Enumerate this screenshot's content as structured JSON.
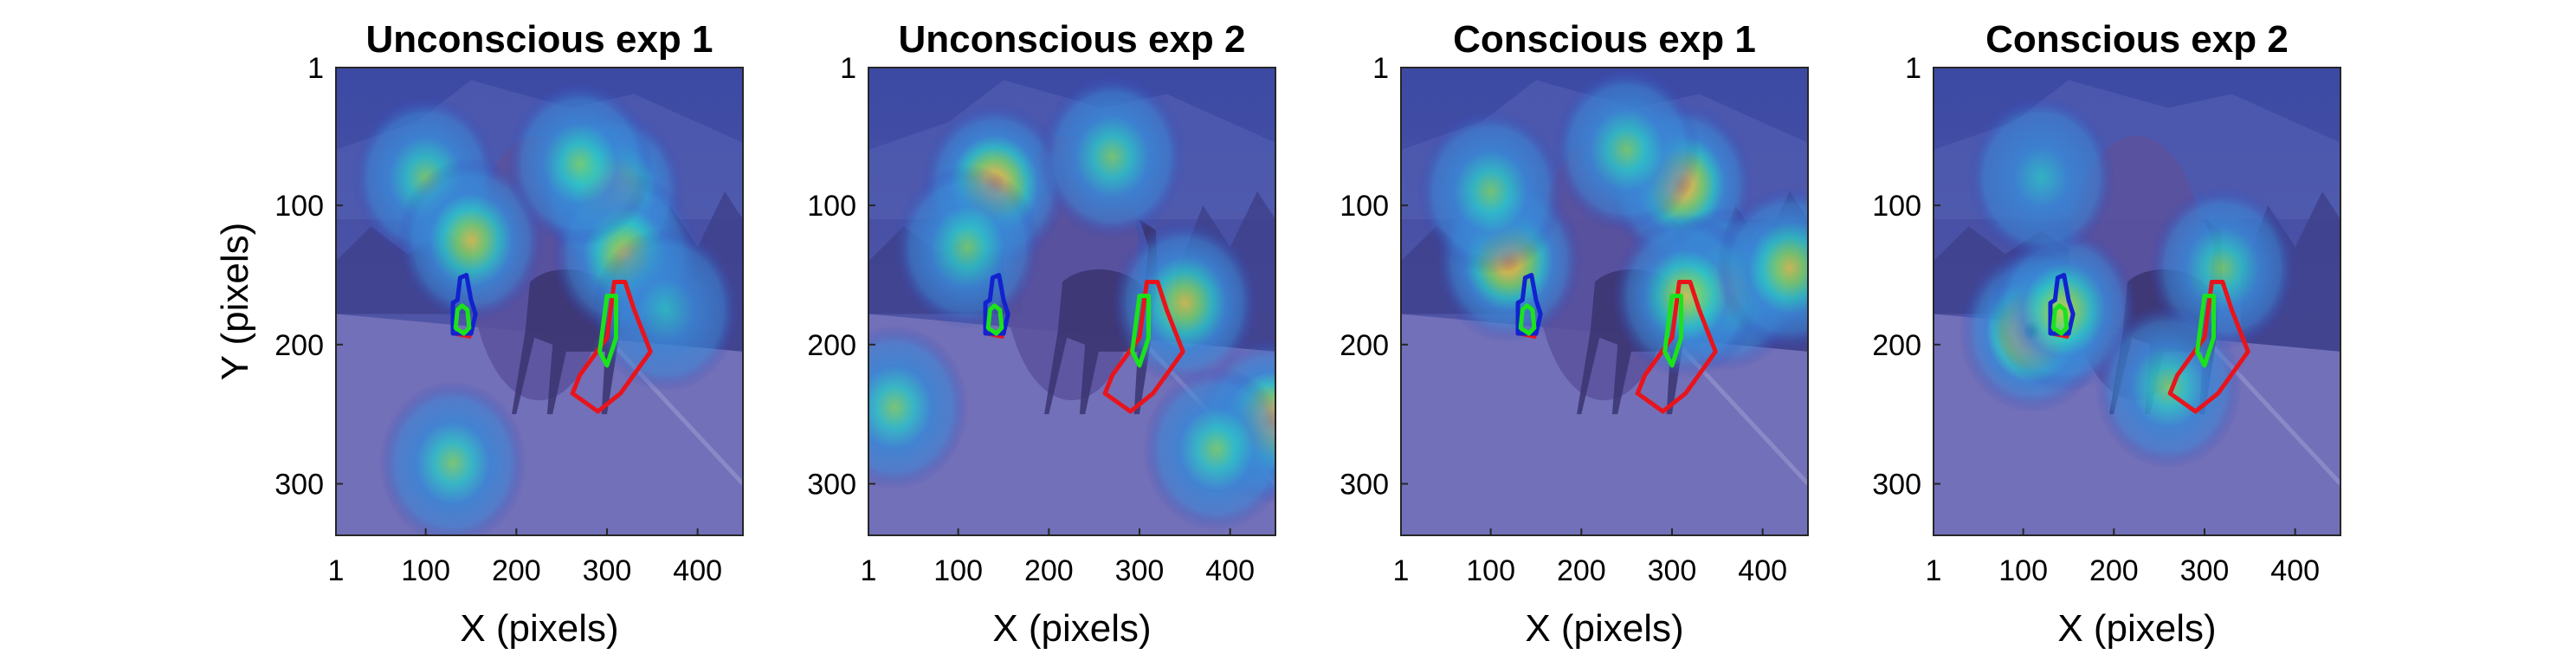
{
  "chart_data": [
    {
      "type": "heatmap",
      "title": "Unconscious exp 1",
      "xlabel": "X (pixels)",
      "ylabel": "Y (pixels)",
      "xlim": [
        1,
        450
      ],
      "ylim": [
        1,
        337
      ],
      "y_reversed": true,
      "xticks": [
        1,
        100,
        200,
        300,
        400
      ],
      "yticks": [
        1,
        100,
        200,
        300
      ],
      "hotspots": [
        {
          "x": 305,
          "y": 90,
          "intensity": 0.85
        },
        {
          "x": 320,
          "y": 135,
          "intensity": 0.55
        },
        {
          "x": 100,
          "y": 80,
          "intensity": 0.45
        },
        {
          "x": 150,
          "y": 125,
          "intensity": 0.55
        },
        {
          "x": 270,
          "y": 70,
          "intensity": 0.35
        },
        {
          "x": 130,
          "y": 285,
          "intensity": 0.35
        },
        {
          "x": 365,
          "y": 175,
          "intensity": 0.25
        }
      ]
    },
    {
      "type": "heatmap",
      "title": "Unconscious exp 2",
      "xlabel": "X (pixels)",
      "ylabel": "",
      "xlim": [
        1,
        450
      ],
      "ylim": [
        1,
        337
      ],
      "y_reversed": true,
      "xticks": [
        1,
        100,
        200,
        300,
        400
      ],
      "yticks": [
        1,
        100,
        200,
        300
      ],
      "hotspots": [
        {
          "x": 140,
          "y": 85,
          "intensity": 0.85
        },
        {
          "x": 110,
          "y": 130,
          "intensity": 0.4
        },
        {
          "x": 350,
          "y": 170,
          "intensity": 0.6
        },
        {
          "x": 445,
          "y": 255,
          "intensity": 0.85
        },
        {
          "x": 385,
          "y": 275,
          "intensity": 0.4
        },
        {
          "x": 30,
          "y": 245,
          "intensity": 0.3
        },
        {
          "x": 270,
          "y": 65,
          "intensity": 0.3
        }
      ]
    },
    {
      "type": "heatmap",
      "title": "Conscious exp 1",
      "xlabel": "X (pixels)",
      "ylabel": "",
      "xlim": [
        1,
        450
      ],
      "ylim": [
        1,
        337
      ],
      "y_reversed": true,
      "xticks": [
        1,
        100,
        200,
        300,
        400
      ],
      "yticks": [
        1,
        100,
        200,
        300
      ],
      "hotspots": [
        {
          "x": 310,
          "y": 85,
          "intensity": 0.8
        },
        {
          "x": 120,
          "y": 140,
          "intensity": 0.75
        },
        {
          "x": 360,
          "y": 160,
          "intensity": 0.65
        },
        {
          "x": 315,
          "y": 165,
          "intensity": 0.6
        },
        {
          "x": 430,
          "y": 145,
          "intensity": 0.5
        },
        {
          "x": 100,
          "y": 90,
          "intensity": 0.35
        },
        {
          "x": 250,
          "y": 60,
          "intensity": 0.35
        }
      ]
    },
    {
      "type": "heatmap",
      "title": "Conscious exp 2",
      "xlabel": "X (pixels)",
      "ylabel": "",
      "xlim": [
        1,
        450
      ],
      "ylim": [
        1,
        337
      ],
      "y_reversed": true,
      "xticks": [
        1,
        100,
        200,
        300,
        400
      ],
      "yticks": [
        1,
        100,
        200,
        300
      ],
      "hotspots": [
        {
          "x": 110,
          "y": 190,
          "intensity": 0.95
        },
        {
          "x": 145,
          "y": 175,
          "intensity": 0.5
        },
        {
          "x": 320,
          "y": 145,
          "intensity": 0.35
        },
        {
          "x": 260,
          "y": 230,
          "intensity": 0.3
        },
        {
          "x": 120,
          "y": 80,
          "intensity": 0.2
        }
      ]
    }
  ],
  "overlay": {
    "sky_color": "#4f55a6",
    "road_color": "#7270b8",
    "disk": {
      "x": 225,
      "y": 145,
      "rx": 75,
      "ry": 95,
      "color": "#5a519c"
    },
    "roi_colors": {
      "red": "#e8141c",
      "green": "#1be31b",
      "blue": "#1222cf"
    },
    "roi_blue": [
      [
        130,
        170
      ],
      [
        130,
        192
      ],
      [
        150,
        192
      ],
      [
        155,
        178
      ],
      [
        150,
        168
      ],
      [
        145,
        150
      ],
      [
        138,
        152
      ],
      [
        135,
        168
      ]
    ],
    "roi_green_left": [
      [
        135,
        175
      ],
      [
        133,
        188
      ],
      [
        142,
        192
      ],
      [
        148,
        188
      ],
      [
        146,
        175
      ],
      [
        140,
        172
      ]
    ],
    "roi_red_left": [
      [
        132,
        192
      ],
      [
        148,
        194
      ],
      [
        150,
        190
      ]
    ],
    "roi_green_right": [
      [
        300,
        165
      ],
      [
        292,
        205
      ],
      [
        300,
        215
      ],
      [
        310,
        195
      ],
      [
        310,
        165
      ]
    ],
    "roi_red_right": [
      [
        308,
        155
      ],
      [
        300,
        195
      ],
      [
        270,
        222
      ],
      [
        262,
        235
      ],
      [
        290,
        248
      ],
      [
        315,
        235
      ],
      [
        348,
        205
      ],
      [
        330,
        175
      ],
      [
        320,
        155
      ]
    ],
    "colormap": [
      "#3240b8",
      "#3a86d6",
      "#2ec2c8",
      "#7bd36a",
      "#dfc84a",
      "#f0a43a"
    ]
  }
}
